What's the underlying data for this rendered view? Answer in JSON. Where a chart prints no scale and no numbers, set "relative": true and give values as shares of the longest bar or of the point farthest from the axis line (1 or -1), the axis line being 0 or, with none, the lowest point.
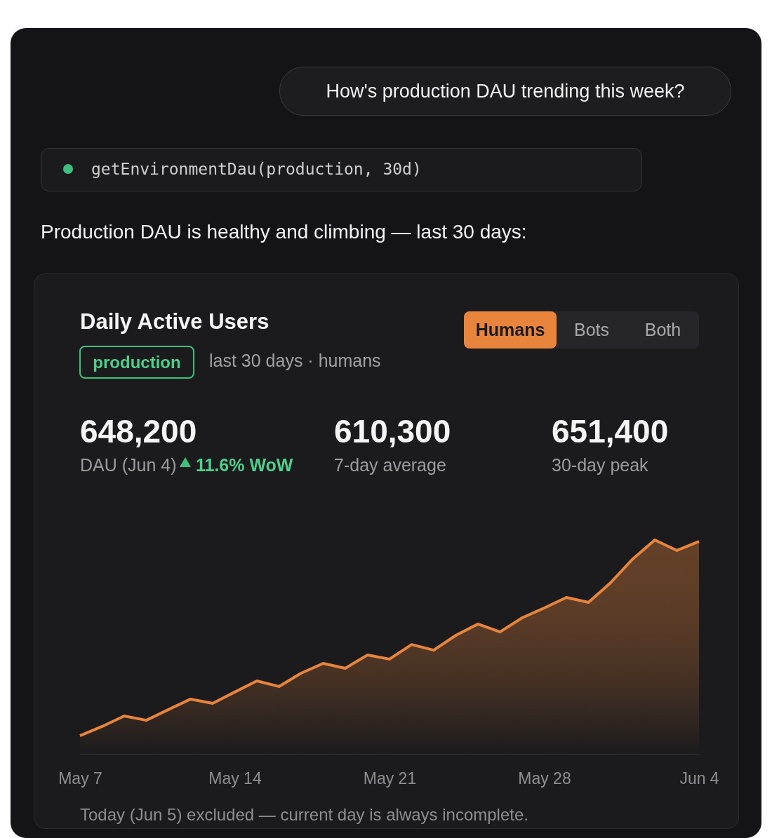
{
  "chart_data": {
    "type": "area",
    "title": "Daily Active Users",
    "subtitle": "last 30 days · humans",
    "annotations": [
      "How's production DAU trending this week?",
      "getEnvironmentDau(production, 30d)",
      "Production DAU is healthy and climbing — last 30 days:",
      "production",
      "Humans",
      "Bots",
      "Both",
      "648,200",
      "DAU (Jun 4)",
      "11.6% WoW",
      "610,300",
      "7-day average",
      "651,400",
      "30-day peak",
      "Today (Jun 5) excluded — current day is always incomplete."
    ],
    "categories": [
      "May 7",
      null,
      null,
      null,
      null,
      null,
      null,
      "May 14",
      null,
      null,
      null,
      null,
      null,
      null,
      "May 21",
      null,
      null,
      null,
      null,
      null,
      null,
      "May 28",
      null,
      null,
      null,
      null,
      null,
      null,
      "Jun 4"
    ],
    "relative": true,
    "series": [
      {
        "color": "#e8843c",
        "values": [
          0.085,
          0.128,
          0.177,
          0.157,
          0.207,
          0.256,
          0.236,
          0.289,
          0.341,
          0.315,
          0.377,
          0.423,
          0.4,
          0.462,
          0.443,
          0.511,
          0.485,
          0.554,
          0.607,
          0.57,
          0.636,
          0.682,
          0.731,
          0.708,
          0.8,
          0.911,
          1,
          0.951,
          0.993
        ]
      }
    ]
  }
}
